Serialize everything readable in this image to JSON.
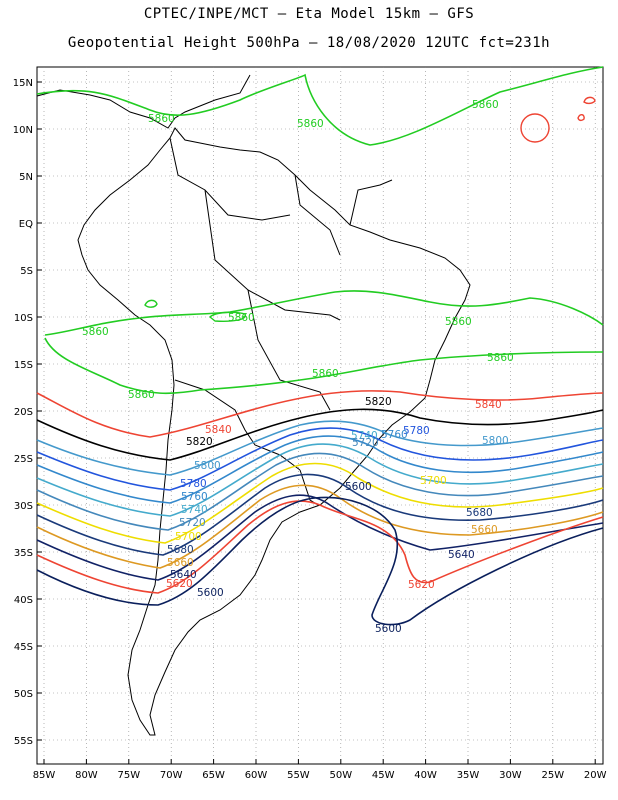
{
  "title_line1": "CPTEC/INPE/MCT –  Eta Model 15km – GFS",
  "title_line2": "Geopotential Height 500hPa – 18/08/2020 12UTC fct=231h",
  "lat_labels": [
    "15N",
    "10N",
    "5N",
    "EQ",
    "5S",
    "10S",
    "15S",
    "20S",
    "25S",
    "30S",
    "35S",
    "40S",
    "45S",
    "50S",
    "55S"
  ],
  "lon_labels": [
    "85W",
    "80W",
    "75W",
    "70W",
    "65W",
    "60W",
    "55W",
    "50W",
    "45W",
    "40W",
    "35W",
    "30W",
    "25W",
    "20W"
  ],
  "contour_levels": [
    {
      "value": "5860",
      "color": "#22cc22"
    },
    {
      "value": "5840",
      "color": "#ee4433"
    },
    {
      "value": "5820",
      "color": "#000000"
    },
    {
      "value": "5800",
      "color": "#4499cc"
    },
    {
      "value": "5780",
      "color": "#2255dd"
    },
    {
      "value": "5760",
      "color": "#3388cc"
    },
    {
      "value": "5740",
      "color": "#44aacc"
    },
    {
      "value": "5720",
      "color": "#4488bb"
    },
    {
      "value": "5700",
      "color": "#eedd00"
    },
    {
      "value": "5680",
      "color": "#1a3a7a"
    },
    {
      "value": "5660",
      "color": "#dd9922"
    },
    {
      "value": "5640",
      "color": "#112266"
    },
    {
      "value": "5620",
      "color": "#ee4433"
    },
    {
      "value": "5600",
      "color": "#0a1f5c"
    }
  ]
}
